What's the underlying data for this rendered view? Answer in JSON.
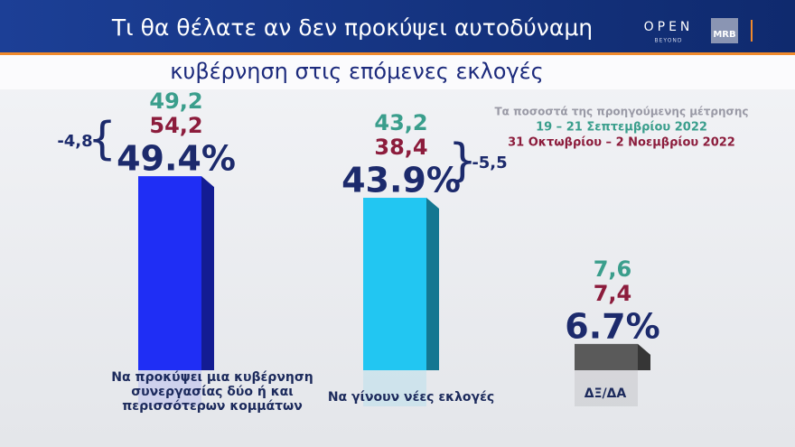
{
  "chart_data": {
    "type": "bar",
    "title": "Τι θα θέλατε αν δεν προκύψει αυτοδύναμη",
    "subtitle": "κυβέρνηση στις επόμενες  εκλογές",
    "legend_title": "Τα ποσοστά της προηγούμενης μέτρησης",
    "categories": [
      "Να προκύψει μια κυβέρνηση συνεργασίας δύο ή και περισσότερων κομμάτων",
      "Να γίνουν νέες εκλογές",
      "ΔΞ/ΔΑ"
    ],
    "values": [
      49.4,
      43.9,
      6.7
    ],
    "value_labels": [
      "49.4%",
      "43.9%",
      "6.7%"
    ],
    "colors": [
      "#1f2ef5",
      "#22c6f2",
      "#5a5a5a"
    ],
    "series": [
      {
        "name": "19 –  21 Σεπτεμβρίου 2022",
        "color": "#3a9e8c",
        "values": [
          49.2,
          43.2,
          7.6
        ],
        "value_labels": [
          "49,2",
          "43,2",
          "7,6"
        ]
      },
      {
        "name": "31 Οκτωβρίου –  2 Νοεμβρίου 2022",
        "color": "#8c1c3c",
        "values": [
          54.2,
          38.4,
          7.4
        ],
        "value_labels": [
          "54,2",
          "38,4",
          "7,4"
        ]
      }
    ],
    "changes": [
      {
        "value": -4.8,
        "label": "-4,8"
      },
      {
        "value": -5.5,
        "label": "-5,5"
      }
    ]
  },
  "logo": {
    "brand": "OPEN",
    "tagline": "BEYOND",
    "pollster": "MRB"
  }
}
